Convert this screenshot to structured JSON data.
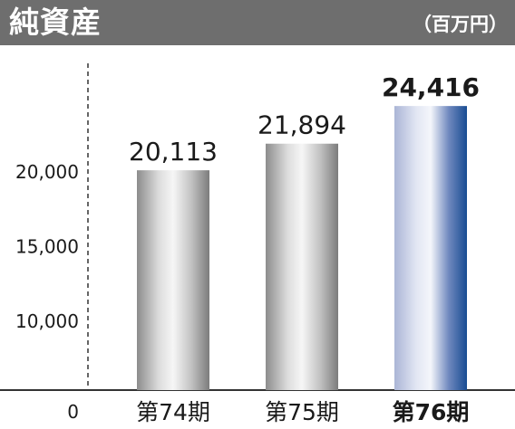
{
  "header": {
    "title": "純資産",
    "unit": "（百万円）"
  },
  "chart_data": {
    "type": "bar",
    "title": "純資産",
    "unit": "（百万円）",
    "categories": [
      "第74期",
      "第75期",
      "第76期"
    ],
    "values": [
      20113,
      21894,
      24416
    ],
    "value_labels": [
      "20,113",
      "21,894",
      "24,416"
    ],
    "highlight_index": 2,
    "y_ticks": [
      {
        "value": 0,
        "label": "0"
      },
      {
        "value": 10000,
        "label": "10,000"
      },
      {
        "value": 15000,
        "label": "15,000"
      },
      {
        "value": 20000,
        "label": "20,000"
      }
    ],
    "ylim": [
      0,
      25000
    ],
    "axis_break": true,
    "grid": false,
    "legend": "none",
    "colors": {
      "bar": "#a0a0a0",
      "highlight_bar": "#1a4e94",
      "axis": "#333333"
    }
  }
}
